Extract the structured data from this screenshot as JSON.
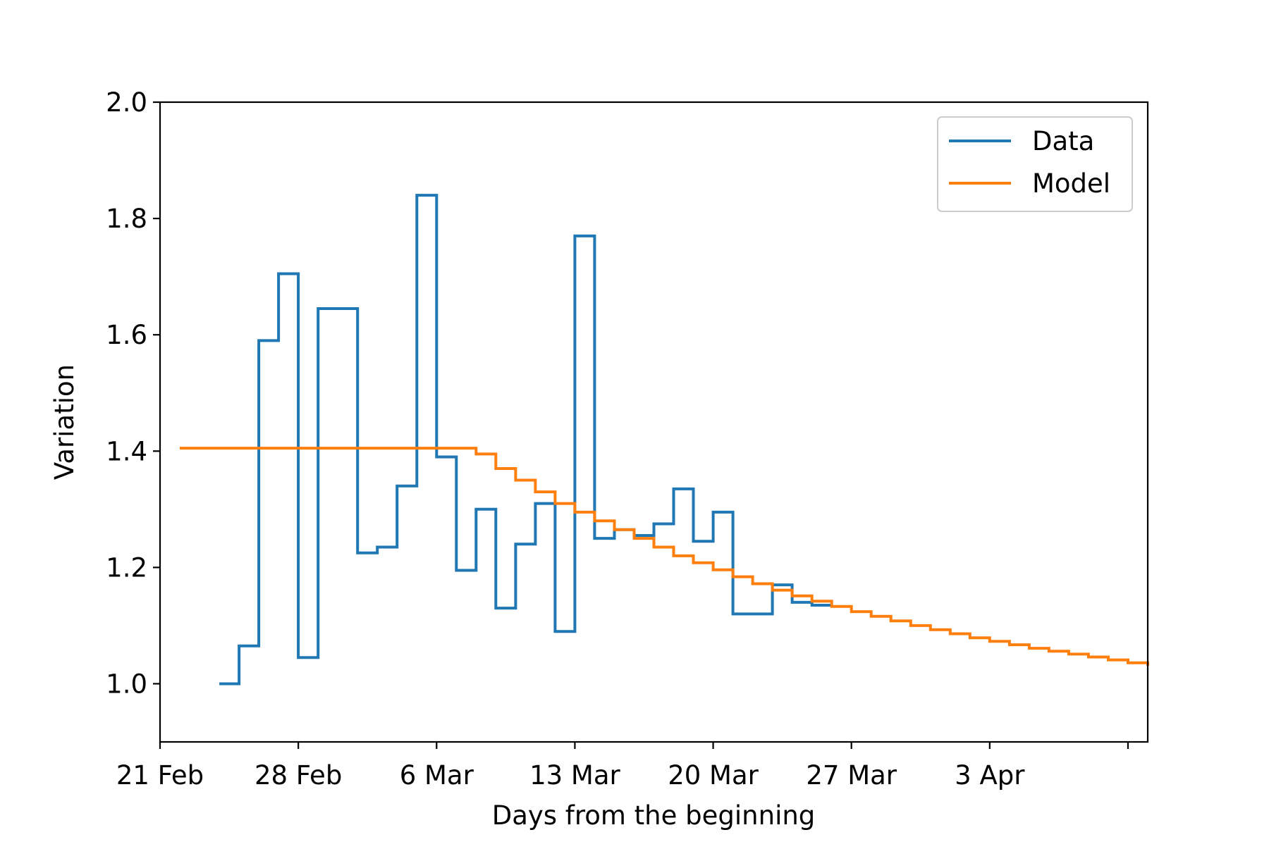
{
  "chart_data": {
    "type": "line",
    "step": "post",
    "title": "",
    "xlabel": "Days from the beginning",
    "ylabel": "Variation",
    "xaxis": {
      "kind": "date",
      "ticks": [
        "2020-02-21",
        "2020-02-28",
        "2020-03-06",
        "2020-03-13",
        "2020-03-20",
        "2020-03-27",
        "2020-04-03",
        "2020-04-10"
      ],
      "tick_labels": [
        "21 Feb",
        "28 Feb",
        "6 Mar",
        "13 Mar",
        "20 Mar",
        "27 Mar",
        "3 Apr",
        ""
      ],
      "xlim": [
        "2020-02-21",
        "2020-04-11"
      ]
    },
    "yaxis": {
      "ylim": [
        0.9,
        2.0
      ],
      "ticks": [
        1.0,
        1.2,
        1.4,
        1.6,
        1.8,
        2.0
      ],
      "tick_labels": [
        "1.0",
        "1.2",
        "1.4",
        "1.6",
        "1.8",
        "2.0"
      ]
    },
    "grid": false,
    "legend": {
      "location": "upper right",
      "show": true
    },
    "series": [
      {
        "name": "Data",
        "color": "#1f77b4",
        "x": [
          "2020-02-24",
          "2020-02-25",
          "2020-02-26",
          "2020-02-27",
          "2020-02-28",
          "2020-02-29",
          "2020-03-01",
          "2020-03-02",
          "2020-03-03",
          "2020-03-04",
          "2020-03-05",
          "2020-03-06",
          "2020-03-07",
          "2020-03-08",
          "2020-03-09",
          "2020-03-10",
          "2020-03-11",
          "2020-03-12",
          "2020-03-13",
          "2020-03-14",
          "2020-03-15",
          "2020-03-16",
          "2020-03-17",
          "2020-03-18",
          "2020-03-19",
          "2020-03-20",
          "2020-03-21",
          "2020-03-22",
          "2020-03-23",
          "2020-03-24",
          "2020-03-25"
        ],
        "y": [
          1.0,
          1.065,
          1.59,
          1.705,
          1.045,
          1.645,
          1.645,
          1.225,
          1.235,
          1.34,
          1.84,
          1.39,
          1.195,
          1.3,
          1.13,
          1.24,
          1.31,
          1.09,
          1.77,
          1.25,
          1.265,
          1.255,
          1.275,
          1.335,
          1.245,
          1.295,
          1.12,
          1.12,
          1.17,
          1.14,
          1.135
        ]
      },
      {
        "name": "Model",
        "color": "#ff7f0e",
        "x": [
          "2020-02-22",
          "2020-02-23",
          "2020-02-24",
          "2020-02-25",
          "2020-02-26",
          "2020-02-27",
          "2020-02-28",
          "2020-02-29",
          "2020-03-01",
          "2020-03-02",
          "2020-03-03",
          "2020-03-04",
          "2020-03-05",
          "2020-03-06",
          "2020-03-07",
          "2020-03-08",
          "2020-03-09",
          "2020-03-10",
          "2020-03-11",
          "2020-03-12",
          "2020-03-13",
          "2020-03-14",
          "2020-03-15",
          "2020-03-16",
          "2020-03-17",
          "2020-03-18",
          "2020-03-19",
          "2020-03-20",
          "2020-03-21",
          "2020-03-22",
          "2020-03-23",
          "2020-03-24",
          "2020-03-25",
          "2020-03-26",
          "2020-03-27",
          "2020-03-28",
          "2020-03-29",
          "2020-03-30",
          "2020-03-31",
          "2020-04-01",
          "2020-04-02",
          "2020-04-03",
          "2020-04-04",
          "2020-04-05",
          "2020-04-06",
          "2020-04-07",
          "2020-04-08",
          "2020-04-09",
          "2020-04-10",
          "2020-04-11"
        ],
        "y": [
          1.405,
          1.405,
          1.405,
          1.405,
          1.405,
          1.405,
          1.405,
          1.405,
          1.405,
          1.405,
          1.405,
          1.405,
          1.405,
          1.405,
          1.405,
          1.395,
          1.37,
          1.35,
          1.33,
          1.31,
          1.295,
          1.28,
          1.265,
          1.25,
          1.235,
          1.22,
          1.208,
          1.196,
          1.184,
          1.172,
          1.161,
          1.151,
          1.142,
          1.133,
          1.124,
          1.116,
          1.108,
          1.1,
          1.093,
          1.086,
          1.079,
          1.073,
          1.067,
          1.061,
          1.056,
          1.051,
          1.046,
          1.041,
          1.036,
          1.031
        ]
      }
    ]
  }
}
